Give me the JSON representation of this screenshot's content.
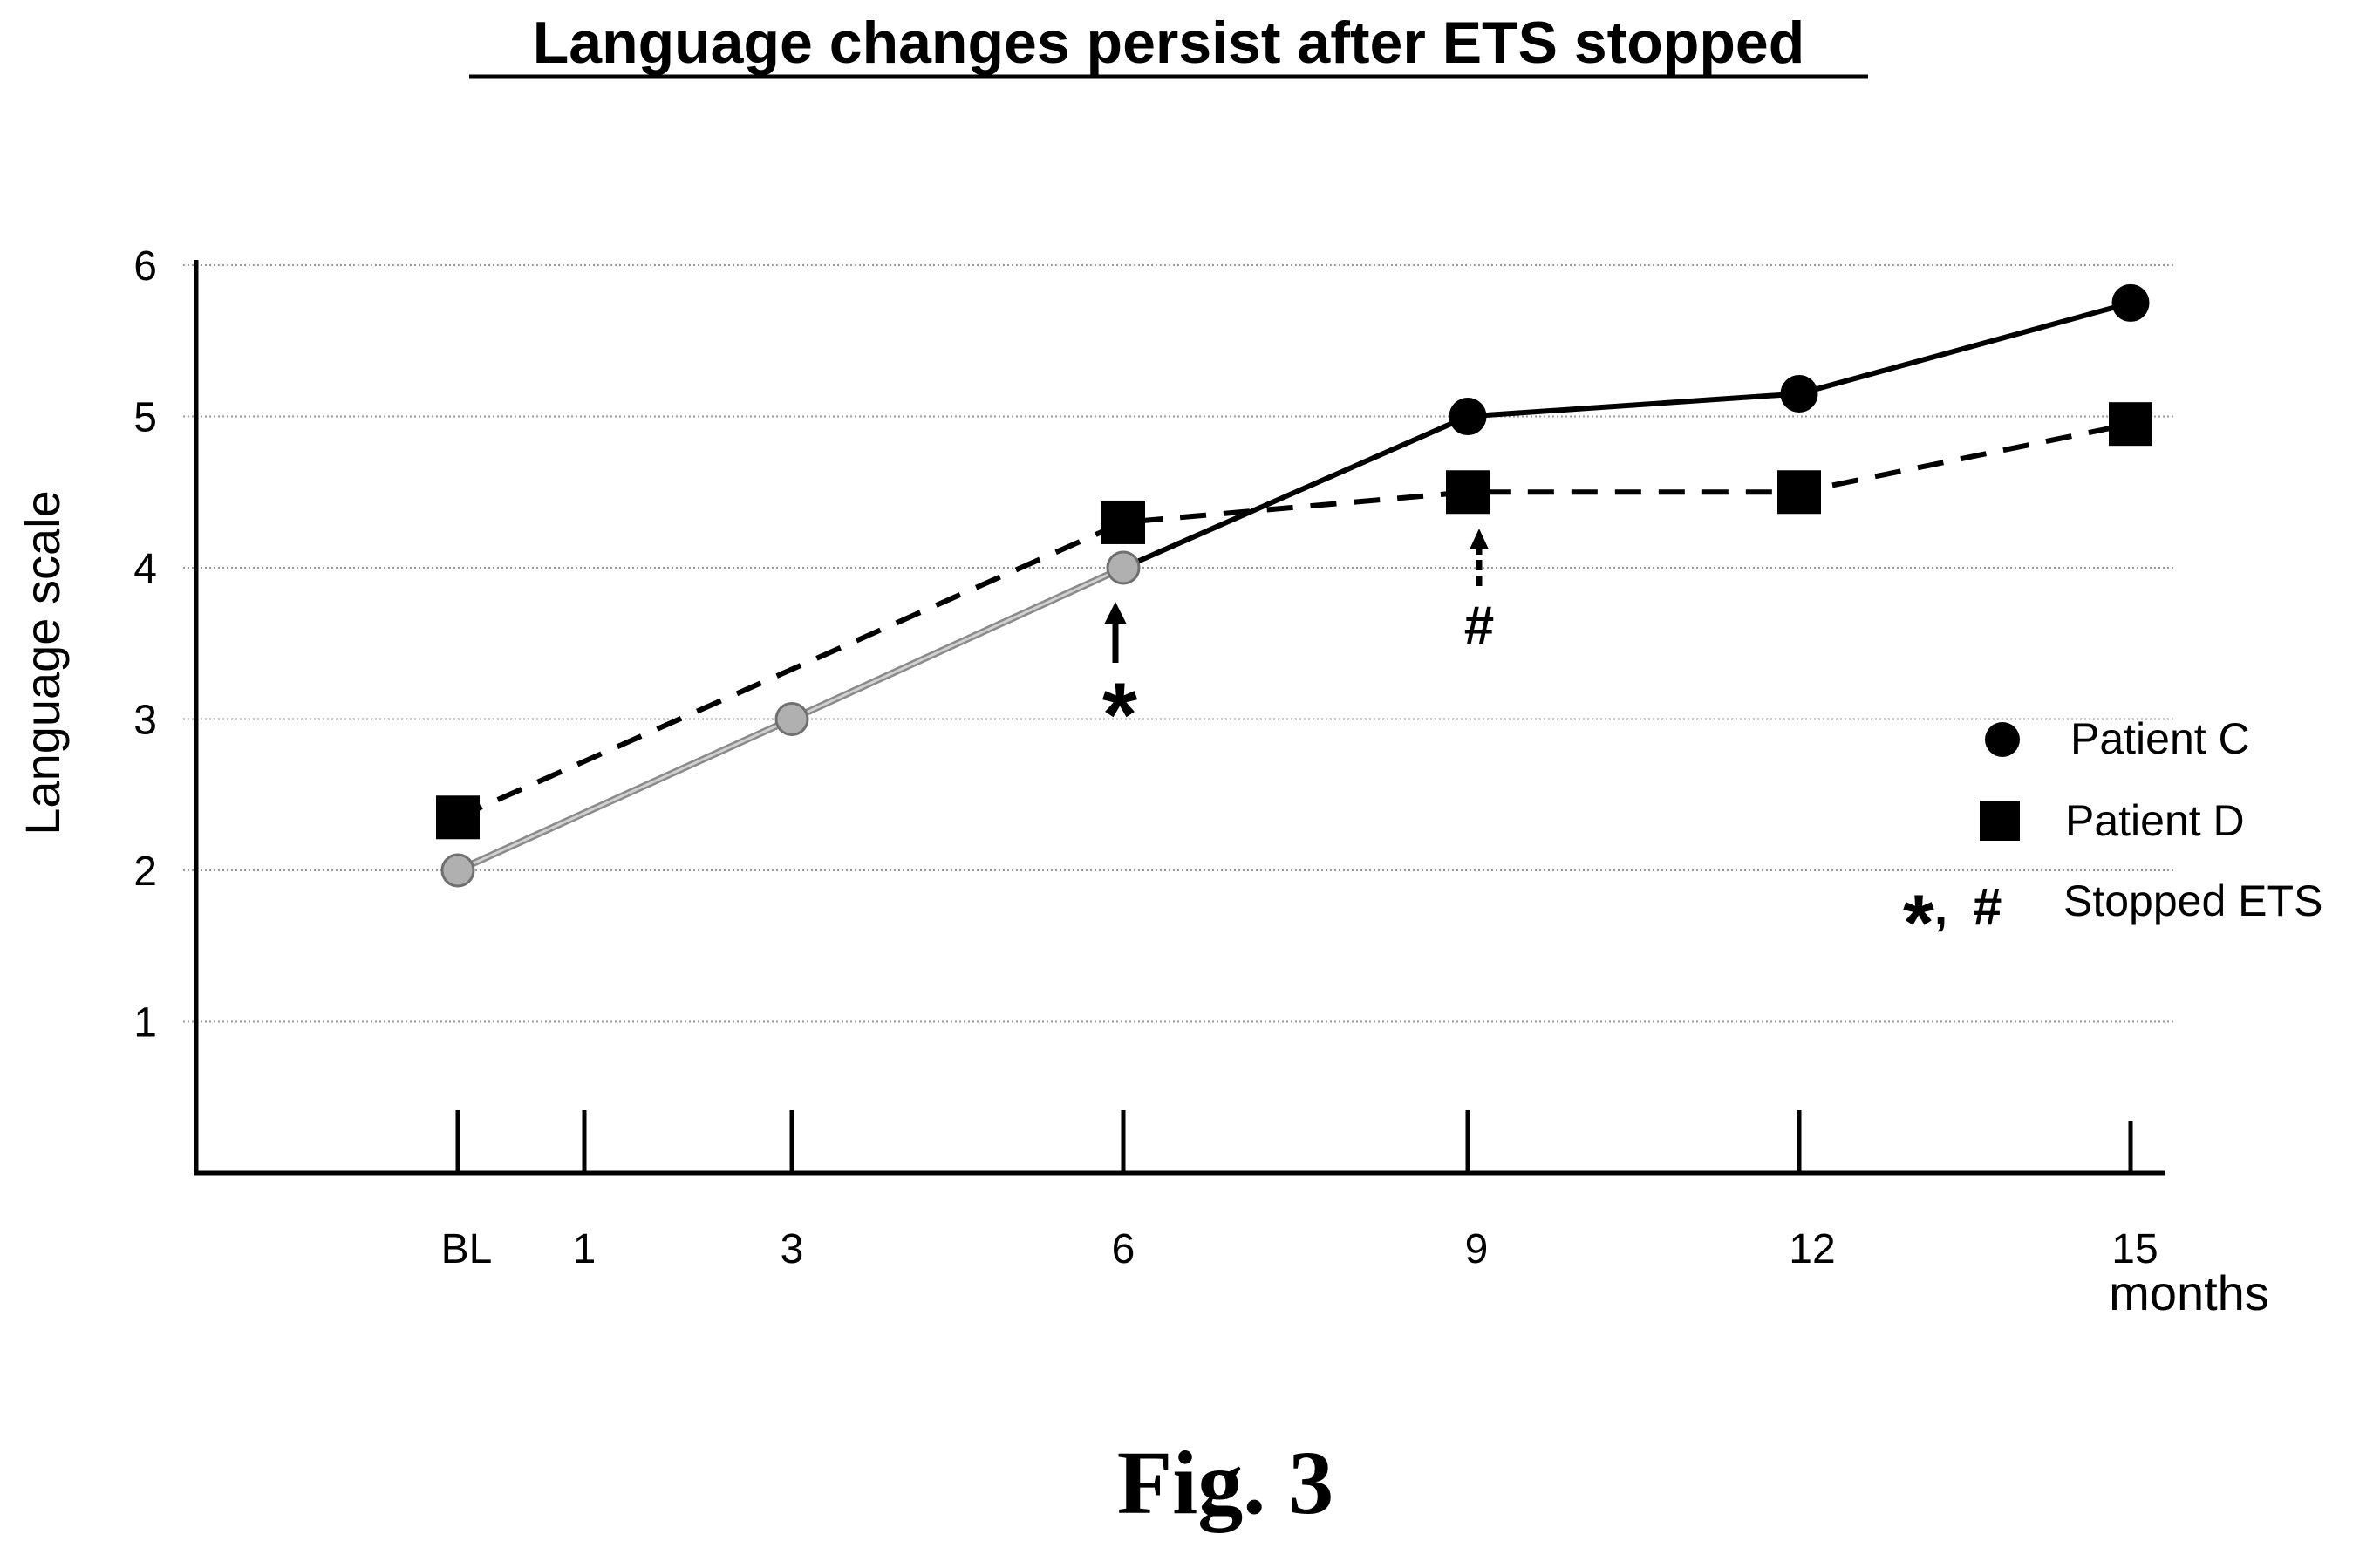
{
  "title": "Language changes persist after ETS stopped",
  "caption": "Fig. 3",
  "colors": {
    "text": "#000000",
    "grid": "#9a9a9a",
    "patient_c_early": "#8a8a8a",
    "patient_c_early_marker": "#b0b0b0"
  },
  "chart_data": {
    "type": "line",
    "title": "Language changes persist after ETS stopped",
    "xlabel": "months",
    "ylabel": "Language   scale",
    "x_categories": [
      "BL",
      "1",
      "3",
      "6",
      "9",
      "12",
      "15"
    ],
    "x_positions": [
      0,
      1,
      3,
      6,
      9,
      12,
      15
    ],
    "ylim": [
      0,
      6
    ],
    "yticks": [
      "1",
      "2",
      "3",
      "4",
      "5",
      "6"
    ],
    "grid": true,
    "legend_position": "right",
    "series": [
      {
        "name": "Patient C",
        "marker": "circle",
        "line": "solid",
        "x": [
          0,
          3,
          6,
          9,
          12,
          15
        ],
        "y": [
          2.0,
          3.0,
          4.0,
          5.0,
          5.15,
          5.75
        ]
      },
      {
        "name": "Patient D",
        "marker": "square",
        "line": "dashed",
        "x": [
          0,
          6,
          9,
          12,
          15
        ],
        "y": [
          2.35,
          4.3,
          4.5,
          4.5,
          4.95
        ]
      }
    ],
    "annotations": [
      {
        "symbol": "*",
        "x": 6,
        "note": "Stopped ETS"
      },
      {
        "symbol": "#",
        "x": 9,
        "note": "Stopped ETS"
      }
    ],
    "legend": [
      {
        "marker": "circle",
        "label": "Patient C"
      },
      {
        "marker": "square",
        "label": "Patient D"
      },
      {
        "marker": "symbols",
        "symbol_star": "*",
        "symbol_sep": ",",
        "symbol_hash": "#",
        "label": "Stopped ETS"
      }
    ]
  }
}
